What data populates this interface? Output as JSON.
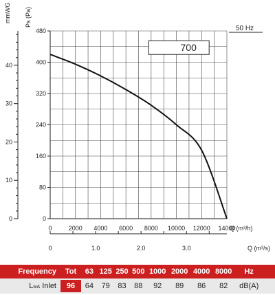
{
  "chart_data": {
    "type": "line",
    "series": [
      {
        "label": "700",
        "points": [
          [
            0,
            420
          ],
          [
            2000,
            395
          ],
          [
            4000,
            365
          ],
          [
            6000,
            330
          ],
          [
            8000,
            290
          ],
          [
            10000,
            240
          ],
          [
            12000,
            175
          ],
          [
            14000,
            0
          ]
        ]
      }
    ],
    "y_primary": {
      "label": "Ps (Pa)",
      "range": [
        0,
        480
      ],
      "ticks": [
        "0",
        "80",
        "160",
        "240",
        "320",
        "400",
        "480"
      ]
    },
    "y_secondary": {
      "label": "mmWG",
      "ticks": [
        "0",
        "10",
        "20",
        "30",
        "40"
      ]
    },
    "x_primary": {
      "label": "Q (m³/h)",
      "range": [
        0,
        14000
      ],
      "ticks": [
        "0",
        "2000",
        "4000",
        "6000",
        "8000",
        "10000",
        "12000",
        "14000"
      ]
    },
    "x_secondary": {
      "label": "Q (m³/s)",
      "ticks": [
        "0",
        "1.0",
        "2.0",
        "3.0"
      ]
    },
    "frequency_label": "50 Hz",
    "grid": true
  },
  "table": {
    "header_label": "Frequency",
    "tot_label": "Tot",
    "bands": [
      "63",
      "125",
      "250",
      "500",
      "1000",
      "2000",
      "4000",
      "8000"
    ],
    "unit_label": "Hz",
    "row_label_main": "L",
    "row_label_sub": "wA",
    "row_label_suffix": " Inlet",
    "tot_value": "96",
    "values": [
      "64",
      "79",
      "83",
      "88",
      "92",
      "89",
      "86",
      "82"
    ],
    "value_unit": "dB(A)"
  }
}
